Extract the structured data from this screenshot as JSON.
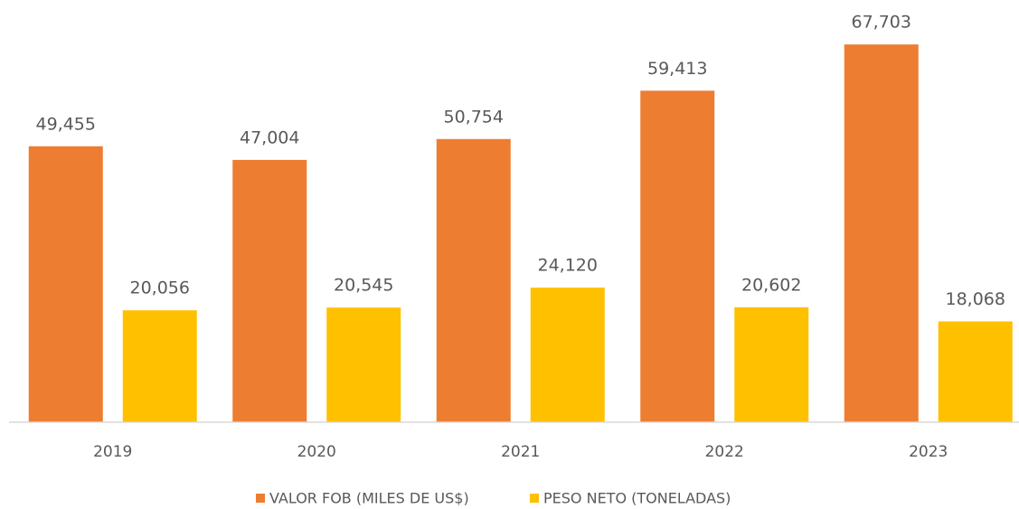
{
  "chart_data": {
    "type": "bar",
    "categories": [
      "2019",
      "2020",
      "2021",
      "2022",
      "2023"
    ],
    "series": [
      {
        "name": "VALOR FOB (MILES DE US$)",
        "color": "#ED7D31",
        "values": [
          49455,
          47004,
          50754,
          59413,
          67703
        ],
        "value_labels": [
          "49,455",
          "47,004",
          "50,754",
          "59,413",
          "67,703"
        ]
      },
      {
        "name": "PESO NETO (TONELADAS)",
        "color": "#FFC000",
        "values": [
          20056,
          20545,
          24120,
          20602,
          18068
        ],
        "value_labels": [
          "20,056",
          "20,545",
          "24,120",
          "20,602",
          "18,068"
        ]
      }
    ],
    "ylim": [
      0,
      70000
    ],
    "legend": "bottom"
  }
}
